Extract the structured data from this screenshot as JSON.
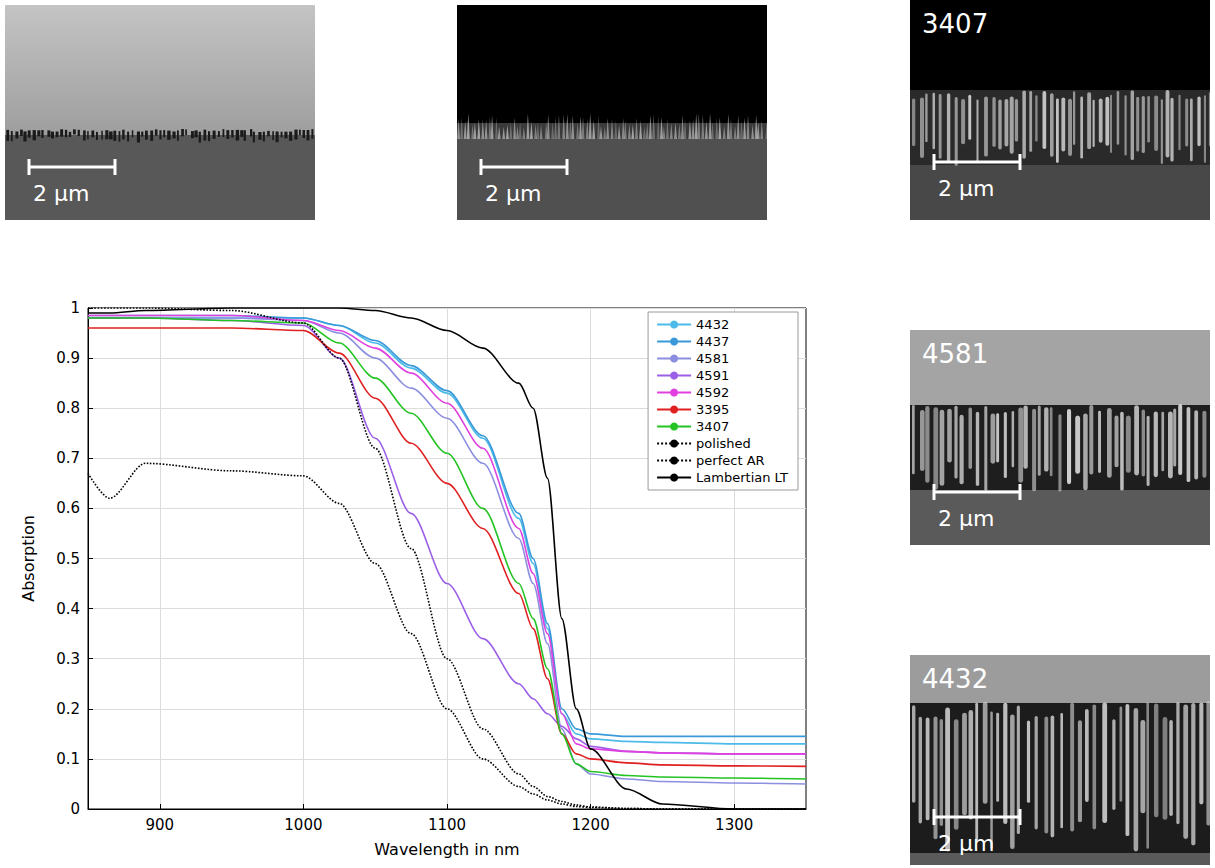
{
  "chart_data": {
    "type": "line",
    "x_label": "Wavelength in nm",
    "y_label": "Absorption",
    "xlim": [
      850,
      1350
    ],
    "xticks": [
      900,
      1000,
      1100,
      1200,
      1300
    ],
    "ylim": [
      0,
      1
    ],
    "yticks": [
      0,
      0.1,
      0.2,
      0.3,
      0.4,
      0.5,
      0.6,
      0.7,
      0.8,
      0.9,
      1
    ],
    "grid": true,
    "legend": "upper right",
    "x": [
      850,
      865,
      890,
      950,
      1000,
      1025,
      1050,
      1075,
      1100,
      1125,
      1150,
      1160,
      1170,
      1180,
      1190,
      1200,
      1225,
      1250,
      1300,
      1350
    ],
    "series": [
      {
        "name": "4432",
        "color": "#4dbbe9",
        "line_style": "solid",
        "values": [
          0.98,
          0.98,
          0.98,
          0.98,
          0.98,
          0.965,
          0.93,
          0.88,
          0.83,
          0.74,
          0.58,
          0.49,
          0.36,
          0.19,
          0.15,
          0.14,
          0.135,
          0.133,
          0.13,
          0.13
        ]
      },
      {
        "name": "4437",
        "color": "#3a9ad9",
        "line_style": "solid",
        "values": [
          0.985,
          0.985,
          0.985,
          0.985,
          0.98,
          0.965,
          0.935,
          0.885,
          0.835,
          0.745,
          0.59,
          0.5,
          0.37,
          0.2,
          0.16,
          0.15,
          0.145,
          0.145,
          0.145,
          0.145
        ]
      },
      {
        "name": "4581",
        "color": "#8c8fe0",
        "line_style": "solid",
        "values": [
          0.98,
          0.98,
          0.98,
          0.98,
          0.975,
          0.95,
          0.9,
          0.84,
          0.78,
          0.69,
          0.54,
          0.45,
          0.33,
          0.16,
          0.09,
          0.07,
          0.06,
          0.055,
          0.052,
          0.05
        ]
      },
      {
        "name": "4591",
        "color": "#9b5fe8",
        "line_style": "solid",
        "values": [
          0.98,
          0.98,
          0.98,
          0.975,
          0.965,
          0.9,
          0.74,
          0.59,
          0.45,
          0.34,
          0.25,
          0.22,
          0.19,
          0.165,
          0.14,
          0.125,
          0.115,
          0.112,
          0.11,
          0.11
        ]
      },
      {
        "name": "4592",
        "color": "#e040e0",
        "line_style": "solid",
        "values": [
          0.985,
          0.985,
          0.985,
          0.985,
          0.975,
          0.955,
          0.92,
          0.87,
          0.81,
          0.72,
          0.56,
          0.47,
          0.35,
          0.19,
          0.13,
          0.12,
          0.115,
          0.112,
          0.11,
          0.11
        ]
      },
      {
        "name": "3395",
        "color": "#e02020",
        "line_style": "solid",
        "values": [
          0.96,
          0.96,
          0.96,
          0.96,
          0.955,
          0.91,
          0.82,
          0.73,
          0.65,
          0.56,
          0.43,
          0.36,
          0.26,
          0.15,
          0.11,
          0.1,
          0.092,
          0.088,
          0.086,
          0.085
        ]
      },
      {
        "name": "3407",
        "color": "#22c322",
        "line_style": "solid",
        "values": [
          0.98,
          0.98,
          0.98,
          0.975,
          0.97,
          0.93,
          0.86,
          0.79,
          0.71,
          0.6,
          0.45,
          0.38,
          0.28,
          0.15,
          0.09,
          0.075,
          0.067,
          0.064,
          0.062,
          0.06
        ]
      },
      {
        "name": "polished",
        "color": "#000000",
        "line_style": "dotted",
        "values": [
          0.67,
          0.62,
          0.69,
          0.675,
          0.665,
          0.61,
          0.49,
          0.35,
          0.2,
          0.1,
          0.045,
          0.03,
          0.018,
          0.01,
          0.005,
          0.003,
          0.001,
          0,
          0,
          0
        ]
      },
      {
        "name": "perfect AR",
        "color": "#000000",
        "line_style": "dotted",
        "values": [
          1,
          1,
          1,
          0.995,
          0.97,
          0.9,
          0.72,
          0.52,
          0.3,
          0.16,
          0.07,
          0.045,
          0.025,
          0.015,
          0.008,
          0.004,
          0.001,
          0,
          0,
          0
        ]
      },
      {
        "name": "Lambertian LT",
        "color": "#000000",
        "line_style": "solid",
        "values": [
          0.99,
          0.99,
          0.995,
          1,
          1,
          1,
          0.995,
          0.98,
          0.955,
          0.92,
          0.85,
          0.8,
          0.66,
          0.38,
          0.2,
          0.12,
          0.04,
          0.01,
          0,
          0
        ]
      }
    ]
  },
  "images": [
    {
      "scale_bar": "2 μm"
    },
    {
      "scale_bar": "2 μm"
    },
    {
      "label": "3407",
      "scale_bar": "2 μm"
    },
    {
      "label": "4581",
      "scale_bar": "2 μm"
    },
    {
      "label": "4432",
      "scale_bar": "2 μm"
    }
  ]
}
